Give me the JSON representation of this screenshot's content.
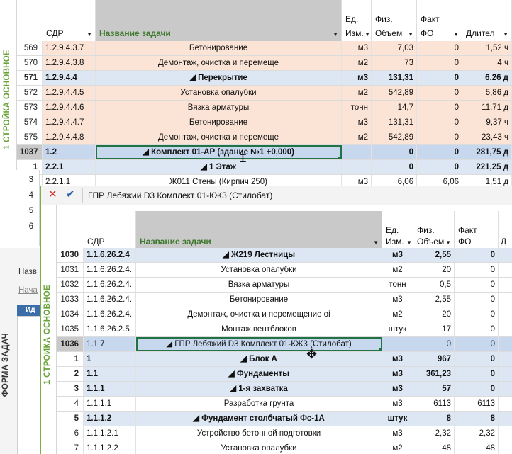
{
  "window1": {
    "side_label": "1 СТРОЙКА ОСНОВНОЕ",
    "headers": {
      "wbs": "СДР",
      "task_name": "Название задачи",
      "unit_line1": "Ед.",
      "unit_line2": "Изм.",
      "volume_line1": "Физ.",
      "volume_line2": "Объем",
      "fact_line1": "Факт",
      "fact_line2": "ФО",
      "duration": "Длител"
    },
    "rows": [
      {
        "num": "569",
        "wbs": "1.2.9.4.3.7",
        "name": "Бетонирование",
        "unit": "м3",
        "vol": "7,03",
        "fact": "0",
        "dur": "1,52 ч",
        "style": "peach"
      },
      {
        "num": "570",
        "wbs": "1.2.9.4.3.8",
        "name": "Демонтаж, очистка и перемеще",
        "unit": "м2",
        "vol": "73",
        "fact": "0",
        "dur": "4 ч",
        "style": "peach"
      },
      {
        "num": "571",
        "wbs": "1.2.9.4.4",
        "name": "◢ Перекрытие",
        "unit": "м3",
        "vol": "131,31",
        "fact": "0",
        "dur": "6,26 д",
        "style": "blue",
        "bold": true
      },
      {
        "num": "572",
        "wbs": "1.2.9.4.4.5",
        "name": "Установка опалубки",
        "unit": "м2",
        "vol": "542,89",
        "fact": "0",
        "dur": "5,86 д",
        "style": "peach"
      },
      {
        "num": "573",
        "wbs": "1.2.9.4.4.6",
        "name": "Вязка арматуры",
        "unit": "тонн",
        "vol": "14,7",
        "fact": "0",
        "dur": "11,71 д",
        "style": "peach"
      },
      {
        "num": "574",
        "wbs": "1.2.9.4.4.7",
        "name": "Бетонирование",
        "unit": "м3",
        "vol": "131,31",
        "fact": "0",
        "dur": "9,37 ч",
        "style": "peach"
      },
      {
        "num": "575",
        "wbs": "1.2.9.4.4.8",
        "name": "Демонтаж, очистка и перемеще",
        "unit": "м2",
        "vol": "542,89",
        "fact": "0",
        "dur": "23,43 ч",
        "style": "peach"
      },
      {
        "num": "1037",
        "wbs": "1.2",
        "name": "◢ Комплект 01-АР (здание №1 +0,000)",
        "unit": "",
        "vol": "0",
        "fact": "0",
        "dur": "281,75 д",
        "style": "selrow",
        "bold": true
      },
      {
        "num": "1",
        "wbs": "2.2.1",
        "name": "◢ 1 Этаж",
        "unit": "",
        "vol": "0",
        "fact": "0",
        "dur": "221,25 д",
        "style": "blue",
        "bold": true
      }
    ],
    "partial_row": {
      "num": "2",
      "wbs": "2.2.1.1",
      "name": "Ж011 Стены (Кирпич 250)",
      "unit": "м3",
      "vol": "6,06",
      "fact": "6,06",
      "dur": "1,51 д"
    }
  },
  "formula_bar": {
    "cancel_icon": "cancel-x-icon",
    "confirm_icon": "checkmark-icon",
    "value": "ГПР Лебяжий D3 Комплект 01-КЖ3 (Стилобат)"
  },
  "left_panel": {
    "row_numbers": [
      "3",
      "4",
      "5",
      "6"
    ],
    "name_label": "Назв",
    "start_label": "Нача",
    "id_header": "Ид",
    "form_label": "ФОРМА ЗАДАЧ"
  },
  "window2": {
    "side_label": "1 СТРОЙКА ОСНОВНОЕ",
    "headers": {
      "wbs": "СДР",
      "task_name": "Название задачи",
      "unit_line1": "Ед.",
      "unit_line2": "Изм.",
      "volume_line1": "Физ.",
      "volume_line2": "Объем",
      "fact_line1": "Факт",
      "fact_line2": "ФО",
      "duration": "Д"
    },
    "rows": [
      {
        "num": "1030",
        "wbs": "1.1.6.26.2.4",
        "name": "◢ Ж219 Лестницы",
        "unit": "м3",
        "vol": "2,55",
        "fact": "0",
        "style": "blue",
        "bold": true
      },
      {
        "num": "1031",
        "wbs": "1.1.6.26.2.4.",
        "name": "Установка опалубки",
        "unit": "м2",
        "vol": "20",
        "fact": "0",
        "style": "white"
      },
      {
        "num": "1032",
        "wbs": "1.1.6.26.2.4.",
        "name": "Вязка арматуры",
        "unit": "тонн",
        "vol": "0,5",
        "fact": "0",
        "style": "white"
      },
      {
        "num": "1033",
        "wbs": "1.1.6.26.2.4.",
        "name": "Бетонирование",
        "unit": "м3",
        "vol": "2,55",
        "fact": "0",
        "style": "white"
      },
      {
        "num": "1034",
        "wbs": "1.1.6.26.2.4.",
        "name": "Демонтаж, очистка и перемещение оі",
        "unit": "м2",
        "vol": "20",
        "fact": "0",
        "style": "white"
      },
      {
        "num": "1035",
        "wbs": "1.1.6.26.2.5",
        "name": "Монтаж вентблоков",
        "unit": "штук",
        "vol": "17",
        "fact": "0",
        "style": "white"
      },
      {
        "num": "1036",
        "wbs": "1.1.7",
        "name": "◢ ГПР Лебяжий D3 Комплект 01-КЖ3 (Стилобат)",
        "unit": "",
        "vol": "0",
        "fact": "0",
        "style": "selrow"
      },
      {
        "num": "1",
        "wbs": "1",
        "name": "◢ Блок А",
        "unit": "м3",
        "vol": "967",
        "fact": "0",
        "style": "blue",
        "bold": true
      },
      {
        "num": "2",
        "wbs": "1.1",
        "name": "◢ Фундаменты",
        "unit": "м3",
        "vol": "361,23",
        "fact": "0",
        "style": "blue",
        "bold": true
      },
      {
        "num": "3",
        "wbs": "1.1.1",
        "name": "◢ 1-я захватка",
        "unit": "м3",
        "vol": "57",
        "fact": "0",
        "style": "blue",
        "bold": true
      },
      {
        "num": "4",
        "wbs": "1.1.1.1",
        "name": "Разработка грунта",
        "unit": "м3",
        "vol": "6113",
        "fact": "6113",
        "style": "white"
      },
      {
        "num": "5",
        "wbs": "1.1.1.2",
        "name": "◢ Фундамент столбчатый Фс-1А",
        "unit": "штук",
        "vol": "8",
        "fact": "8",
        "style": "blue",
        "bold": true
      },
      {
        "num": "6",
        "wbs": "1.1.1.2.1",
        "name": "Устройство бетонной подготовки",
        "unit": "м3",
        "vol": "2,32",
        "fact": "2,32",
        "style": "white"
      },
      {
        "num": "7",
        "wbs": "1.1.1.2.2",
        "name": "Установка опалубки",
        "unit": "м2",
        "vol": "48",
        "fact": "48",
        "style": "white"
      }
    ]
  }
}
